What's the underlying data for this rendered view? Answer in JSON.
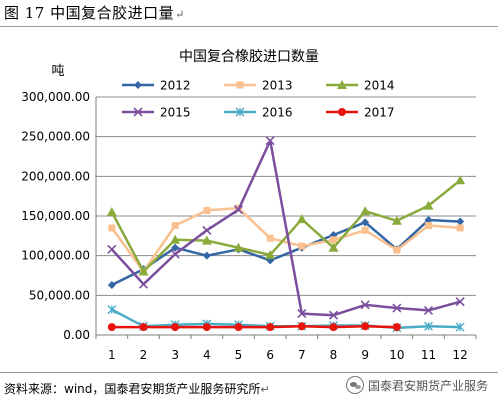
{
  "figure": {
    "label": "图 17 中国复合胶进口量",
    "return_mark": "↵"
  },
  "source": {
    "text": "资料来源：wind，国泰君安期货产业服务研究所",
    "return_mark": "↵"
  },
  "watermark": {
    "icon": "wechat-icon",
    "text": "国泰君安期货产业服务"
  },
  "chart_data": {
    "type": "line",
    "title": "中国复合橡胶进口数量",
    "ylabel": "吨",
    "xlabel": "",
    "ylim": [
      0,
      300000
    ],
    "yticks": [
      0,
      50000,
      100000,
      150000,
      200000,
      250000,
      300000
    ],
    "ytick_labels": [
      "0.00",
      "50,000.00",
      "100,000.00",
      "150,000.00",
      "200,000.00",
      "250,000.00",
      "300,000.00"
    ],
    "categories": [
      "1",
      "2",
      "3",
      "4",
      "5",
      "6",
      "7",
      "8",
      "9",
      "10",
      "11",
      "12"
    ],
    "grid": true,
    "legend_position": "top",
    "series": [
      {
        "name": "2012",
        "color": "#3465a4",
        "marker": "diamond",
        "values": [
          63000,
          83000,
          110000,
          100000,
          108000,
          94000,
          110000,
          126000,
          142000,
          108000,
          145000,
          143000
        ]
      },
      {
        "name": "2013",
        "color": "#fac090",
        "marker": "square",
        "values": [
          135000,
          80000,
          138000,
          157000,
          160000,
          122000,
          112000,
          120000,
          132000,
          107000,
          138000,
          135000
        ]
      },
      {
        "name": "2014",
        "color": "#8aaa3c",
        "marker": "triangle",
        "values": [
          155000,
          80000,
          120000,
          119000,
          110000,
          101000,
          146000,
          110000,
          156000,
          144000,
          163000,
          195000
        ]
      },
      {
        "name": "2015",
        "color": "#7b4f9d",
        "marker": "x",
        "values": [
          108000,
          64000,
          102000,
          132000,
          158000,
          245000,
          27000,
          25000,
          38000,
          34000,
          31000,
          42000
        ]
      },
      {
        "name": "2016",
        "color": "#4bacc6",
        "marker": "star",
        "values": [
          32000,
          11000,
          13000,
          14000,
          13000,
          11000,
          11000,
          12000,
          12000,
          9000,
          11000,
          10000
        ]
      },
      {
        "name": "2017",
        "color": "#e8140c",
        "marker": "circle",
        "values": [
          10000,
          10000,
          10000,
          10000,
          10000,
          10000,
          11000,
          10000,
          11000,
          10000,
          null,
          null
        ]
      }
    ]
  }
}
